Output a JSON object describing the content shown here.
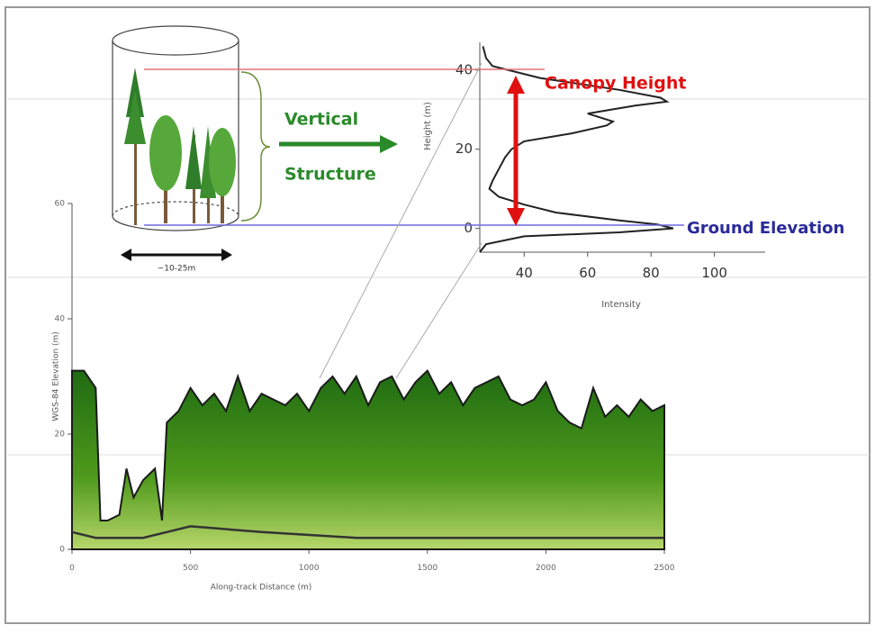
{
  "chart_data": [
    {
      "type": "line",
      "x_label": "Intensity",
      "y_label": "Height (m)",
      "xlim": [
        26,
        116
      ],
      "ylim": [
        -6,
        47
      ],
      "xticks": [
        40,
        60,
        80,
        100
      ],
      "yticks": [
        0,
        20,
        40
      ],
      "series": [
        {
          "color": "#222222",
          "x": [
            27,
            28,
            30,
            45,
            70,
            83,
            85,
            75,
            60,
            68,
            66,
            55,
            40,
            36,
            34,
            32,
            30,
            29,
            32,
            40,
            50,
            70,
            82,
            87,
            70,
            40,
            28,
            26
          ],
          "values": [
            46,
            43,
            41,
            38,
            35,
            33,
            32,
            31,
            29,
            27,
            26,
            24,
            22,
            20,
            18,
            15,
            12,
            10,
            8,
            6,
            4,
            2,
            1,
            0,
            -1,
            -2,
            -4,
            -6
          ]
        }
      ],
      "annotations": [
        "Canopy Height",
        "Ground Elevation",
        "Vertical",
        "Structure",
        "~10-25m"
      ]
    },
    {
      "type": "area",
      "x_label": "Along-track Distance (m)",
      "y_label": "WGS-84 Elevation (m)",
      "xlim": [
        0,
        2500
      ],
      "ylim": [
        0,
        60
      ],
      "xticks": [
        0,
        500,
        1000,
        1500,
        2000,
        2500
      ],
      "yticks": [
        0,
        20,
        40,
        60
      ],
      "series": [
        {
          "color": "#2e7d1a",
          "fill": true,
          "x": [
            0,
            50,
            100,
            120,
            150,
            200,
            230,
            260,
            300,
            350,
            380,
            400,
            450,
            500,
            550,
            600,
            650,
            700,
            750,
            800,
            850,
            900,
            950,
            1000,
            1050,
            1100,
            1150,
            1200,
            1250,
            1300,
            1350,
            1400,
            1450,
            1500,
            1550,
            1600,
            1650,
            1700,
            1750,
            1800,
            1850,
            1900,
            1950,
            2000,
            2050,
            2100,
            2150,
            2200,
            2250,
            2300,
            2350,
            2400,
            2450,
            2500
          ],
          "values": [
            31,
            31,
            28,
            5,
            5,
            6,
            14,
            9,
            12,
            14,
            5,
            22,
            24,
            28,
            25,
            27,
            24,
            30,
            24,
            27,
            26,
            25,
            27,
            24,
            28,
            30,
            27,
            30,
            25,
            29,
            30,
            26,
            29,
            31,
            27,
            29,
            25,
            28,
            29,
            30,
            26,
            25,
            26,
            29,
            24,
            22,
            21,
            28,
            23,
            25,
            23,
            26,
            24,
            25
          ]
        },
        {
          "color": "#333333",
          "x": [
            0,
            100,
            200,
            300,
            400,
            500,
            800,
            1200,
            1600,
            2000,
            2500
          ],
          "values": [
            3,
            2,
            2,
            2,
            3,
            4,
            3,
            2,
            2,
            2,
            2
          ]
        }
      ]
    }
  ]
}
